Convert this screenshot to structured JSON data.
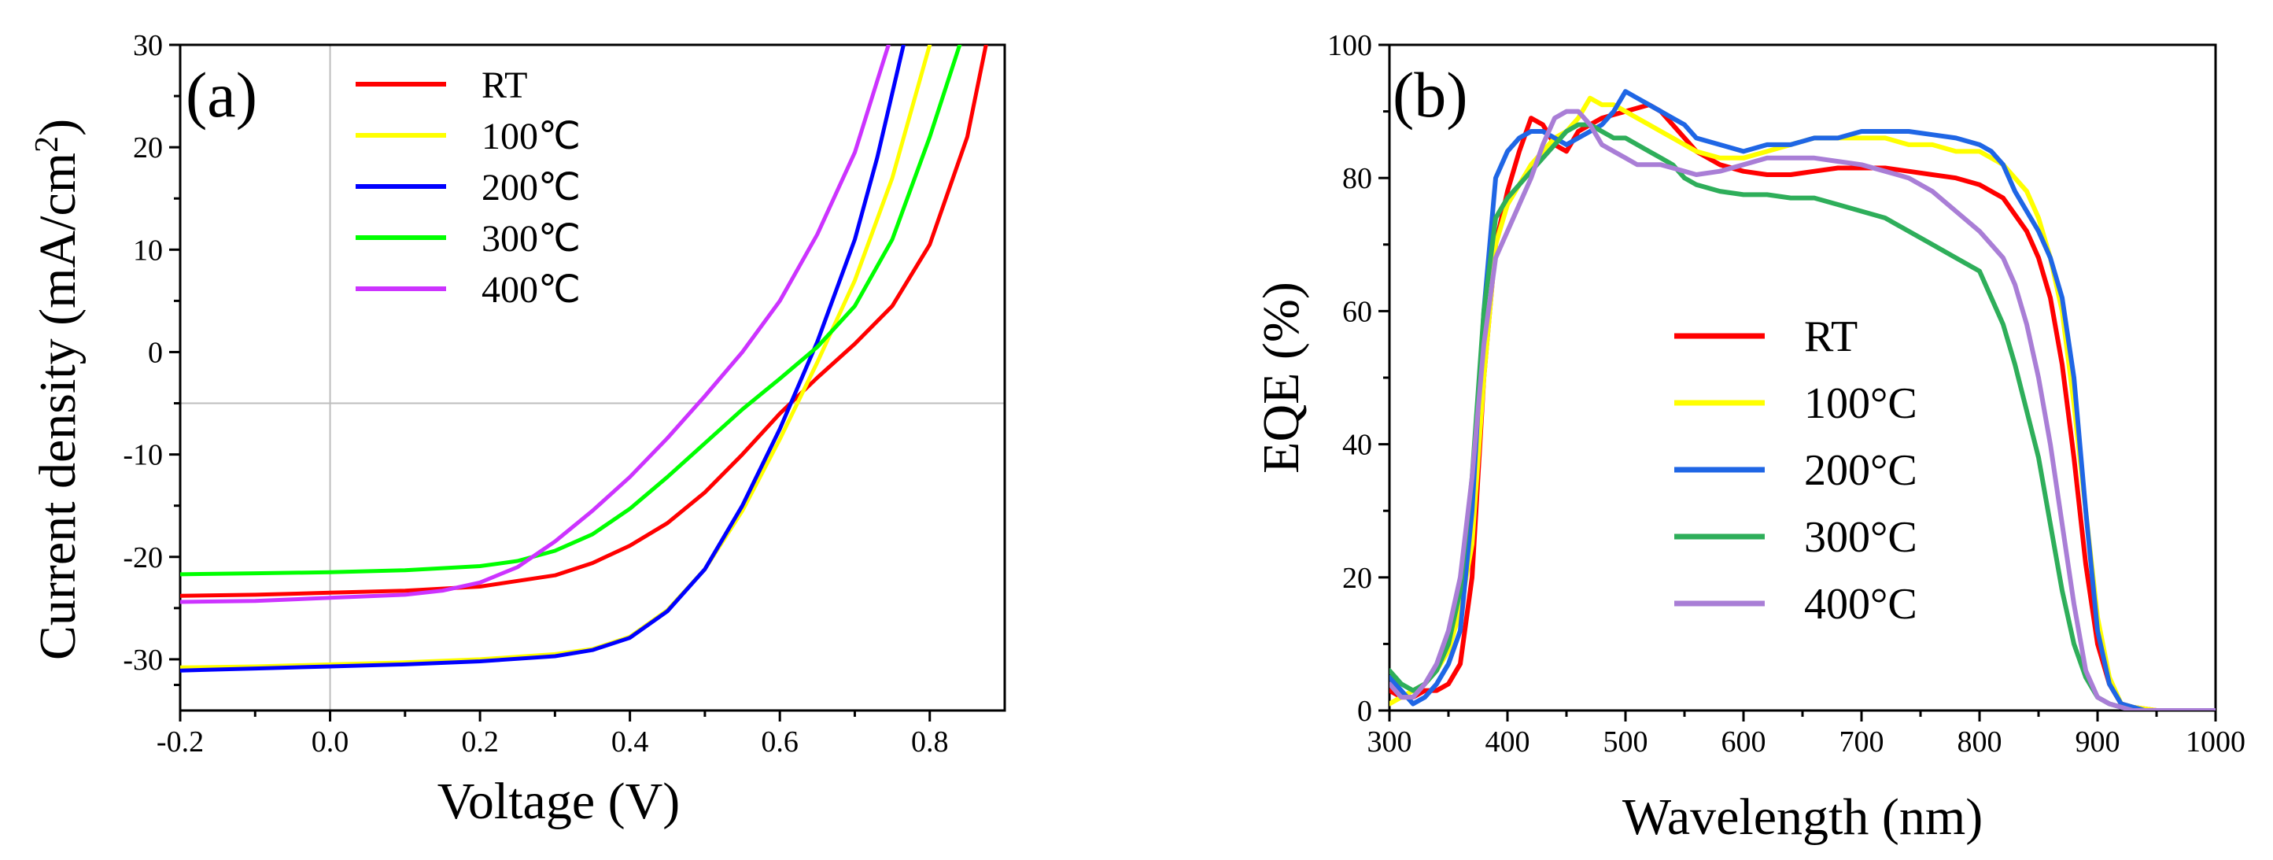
{
  "chart_data": [
    {
      "type": "line",
      "panel_label": "(a)",
      "xlabel": "Voltage (V)",
      "ylabel_main": "Current density (mA/cm",
      "ylabel_sup": "2",
      "ylabel_close": ")",
      "xlim": [
        -0.2,
        0.9
      ],
      "ylim": [
        -35,
        30
      ],
      "xticks": [
        -0.2,
        0.0,
        0.2,
        0.4,
        0.6,
        0.8
      ],
      "xtick_labels": [
        "-0.2",
        "0.0",
        "0.2",
        "0.4",
        "0.6",
        "0.8"
      ],
      "yticks": [
        -30,
        -20,
        -10,
        0,
        10,
        20,
        30
      ],
      "ytick_labels": [
        "-30",
        "-20",
        "-10",
        "0",
        "10",
        "20",
        "30"
      ],
      "reference_lines": {
        "x": 0,
        "y": -5
      },
      "legend_position": "top-left",
      "series": [
        {
          "name": "RT",
          "color": "#ff0000",
          "x": [
            -0.2,
            -0.1,
            0.0,
            0.1,
            0.2,
            0.3,
            0.35,
            0.4,
            0.45,
            0.5,
            0.55,
            0.6,
            0.65,
            0.7,
            0.75,
            0.8,
            0.85,
            0.875
          ],
          "y": [
            -23.8,
            -23.7,
            -23.5,
            -23.3,
            -22.9,
            -21.8,
            -20.6,
            -18.9,
            -16.7,
            -13.7,
            -10.0,
            -6.0,
            -2.5,
            0.8,
            4.5,
            10.5,
            21.0,
            30.0
          ]
        },
        {
          "name": "100℃",
          "color": "#ffff00",
          "x": [
            -0.2,
            -0.1,
            0.0,
            0.1,
            0.2,
            0.3,
            0.35,
            0.4,
            0.45,
            0.5,
            0.55,
            0.6,
            0.65,
            0.7,
            0.75,
            0.8
          ],
          "y": [
            -30.8,
            -30.7,
            -30.5,
            -30.3,
            -30.0,
            -29.5,
            -29.0,
            -27.8,
            -25.2,
            -21.2,
            -15.5,
            -8.5,
            -1.0,
            7.0,
            17.0,
            30.0
          ]
        },
        {
          "name": "200℃",
          "color": "#0000ff",
          "x": [
            -0.2,
            -0.1,
            0.0,
            0.1,
            0.2,
            0.3,
            0.35,
            0.4,
            0.45,
            0.5,
            0.55,
            0.6,
            0.65,
            0.7,
            0.73,
            0.765
          ],
          "y": [
            -31.1,
            -30.9,
            -30.7,
            -30.5,
            -30.2,
            -29.7,
            -29.1,
            -27.9,
            -25.3,
            -21.2,
            -15.0,
            -7.5,
            1.0,
            11.0,
            19.0,
            30.0
          ]
        },
        {
          "name": "300℃",
          "color": "#00ff00",
          "x": [
            -0.2,
            -0.1,
            0.0,
            0.1,
            0.2,
            0.25,
            0.3,
            0.35,
            0.4,
            0.45,
            0.5,
            0.55,
            0.6,
            0.65,
            0.7,
            0.75,
            0.8,
            0.84
          ],
          "y": [
            -21.7,
            -21.6,
            -21.5,
            -21.3,
            -20.9,
            -20.4,
            -19.4,
            -17.8,
            -15.3,
            -12.2,
            -8.9,
            -5.6,
            -2.6,
            0.5,
            4.5,
            11.0,
            21.0,
            30.0
          ]
        },
        {
          "name": "400℃",
          "color": "#cc33ff",
          "x": [
            -0.2,
            -0.1,
            0.0,
            0.1,
            0.15,
            0.2,
            0.25,
            0.3,
            0.35,
            0.4,
            0.45,
            0.5,
            0.55,
            0.6,
            0.65,
            0.7,
            0.745
          ],
          "y": [
            -24.4,
            -24.3,
            -24.0,
            -23.7,
            -23.3,
            -22.5,
            -21.0,
            -18.5,
            -15.5,
            -12.2,
            -8.4,
            -4.3,
            0.0,
            5.0,
            11.5,
            19.5,
            30.0
          ]
        }
      ]
    },
    {
      "type": "line",
      "panel_label": "(b)",
      "xlabel": "Wavelength (nm)",
      "ylabel": "EQE (%)",
      "xlim": [
        300,
        1000
      ],
      "ylim": [
        0,
        100
      ],
      "xticks": [
        300,
        400,
        500,
        600,
        700,
        800,
        900,
        1000
      ],
      "xtick_labels": [
        "300",
        "400",
        "500",
        "600",
        "700",
        "800",
        "900",
        "1000"
      ],
      "yticks": [
        0,
        20,
        40,
        60,
        80,
        100
      ],
      "ytick_labels": [
        "0",
        "20",
        "40",
        "60",
        "80",
        "100"
      ],
      "legend_position": "center",
      "series": [
        {
          "name": "RT",
          "color": "#ff0000",
          "x": [
            300,
            310,
            320,
            330,
            340,
            350,
            360,
            370,
            380,
            390,
            400,
            410,
            420,
            430,
            440,
            450,
            460,
            470,
            480,
            490,
            500,
            510,
            520,
            530,
            540,
            550,
            560,
            580,
            600,
            620,
            640,
            660,
            680,
            700,
            720,
            740,
            760,
            780,
            800,
            820,
            840,
            850,
            860,
            870,
            880,
            890,
            900,
            910,
            920,
            930,
            950,
            970,
            1000
          ],
          "y": [
            3,
            2,
            2,
            3,
            3,
            4,
            7,
            20,
            50,
            70,
            78,
            84,
            89,
            88,
            85,
            84,
            87,
            88,
            89,
            89.5,
            90,
            90.5,
            91,
            90,
            88,
            86,
            84,
            82,
            81,
            80.5,
            80.5,
            81,
            81.5,
            81.5,
            81.5,
            81,
            80.5,
            80,
            79,
            77,
            72,
            68,
            62,
            52,
            38,
            22,
            10,
            4,
            1,
            0.5,
            0,
            0,
            0
          ]
        },
        {
          "name": "100°C",
          "color": "#ffff00",
          "x": [
            300,
            310,
            320,
            330,
            340,
            350,
            360,
            370,
            380,
            390,
            400,
            410,
            420,
            430,
            440,
            450,
            460,
            470,
            480,
            490,
            500,
            510,
            520,
            530,
            540,
            550,
            560,
            580,
            600,
            620,
            640,
            660,
            680,
            700,
            720,
            740,
            760,
            780,
            800,
            820,
            840,
            850,
            860,
            870,
            880,
            890,
            900,
            910,
            920,
            930,
            950,
            1000
          ],
          "y": [
            1,
            2,
            3,
            4,
            6,
            9,
            15,
            25,
            50,
            70,
            76,
            79,
            82,
            84,
            86,
            87,
            89,
            92,
            91,
            91,
            90,
            89,
            88,
            87,
            86,
            85,
            84,
            83,
            83,
            84,
            85,
            86,
            86,
            86,
            86,
            85,
            85,
            84,
            84,
            82,
            78,
            74,
            68,
            60,
            46,
            30,
            14,
            5,
            1,
            0.5,
            0,
            0
          ]
        },
        {
          "name": "200°C",
          "color": "#1f66e5",
          "x": [
            300,
            310,
            320,
            330,
            340,
            350,
            360,
            370,
            380,
            390,
            400,
            410,
            420,
            430,
            440,
            450,
            460,
            470,
            480,
            490,
            500,
            510,
            520,
            530,
            540,
            550,
            560,
            580,
            600,
            620,
            640,
            660,
            680,
            700,
            720,
            740,
            760,
            780,
            800,
            810,
            820,
            830,
            840,
            850,
            860,
            870,
            880,
            890,
            900,
            910,
            920,
            930,
            940,
            960,
            1000
          ],
          "y": [
            5,
            3,
            1,
            2,
            4,
            7,
            12,
            30,
            60,
            80,
            84,
            86,
            87,
            87,
            86,
            85,
            86,
            87,
            88,
            90,
            93,
            92,
            91,
            90,
            89,
            88,
            86,
            85,
            84,
            85,
            85,
            86,
            86,
            87,
            87,
            87,
            86.5,
            86,
            85,
            84,
            82,
            78,
            75,
            72,
            68,
            62,
            50,
            30,
            12,
            4,
            1,
            0.5,
            0,
            0,
            0
          ]
        },
        {
          "name": "300°C",
          "color": "#2eae5a",
          "x": [
            300,
            310,
            320,
            330,
            340,
            350,
            360,
            370,
            380,
            390,
            400,
            410,
            420,
            430,
            440,
            450,
            460,
            470,
            480,
            490,
            500,
            510,
            520,
            530,
            540,
            550,
            560,
            580,
            600,
            620,
            640,
            660,
            680,
            700,
            720,
            740,
            760,
            780,
            800,
            810,
            820,
            830,
            840,
            850,
            860,
            870,
            880,
            890,
            900,
            910,
            920,
            930,
            1000
          ],
          "y": [
            6,
            4,
            3,
            4,
            6,
            10,
            18,
            35,
            60,
            74,
            77,
            79,
            81,
            83,
            85,
            87,
            88,
            88,
            87,
            86,
            86,
            85,
            84,
            83,
            82,
            80,
            79,
            78,
            77.5,
            77.5,
            77,
            77,
            76,
            75,
            74,
            72,
            70,
            68,
            66,
            62,
            58,
            52,
            45,
            38,
            28,
            18,
            10,
            5,
            2,
            1,
            0.5,
            0,
            0
          ]
        },
        {
          "name": "400°C",
          "color": "#a97ed6",
          "x": [
            300,
            310,
            320,
            330,
            340,
            350,
            360,
            370,
            380,
            390,
            400,
            410,
            420,
            430,
            440,
            450,
            460,
            470,
            480,
            490,
            500,
            510,
            520,
            530,
            540,
            550,
            560,
            580,
            600,
            620,
            640,
            660,
            680,
            700,
            720,
            740,
            760,
            780,
            800,
            810,
            820,
            830,
            840,
            850,
            860,
            870,
            880,
            890,
            900,
            910,
            920,
            930,
            1000
          ],
          "y": [
            4,
            2,
            2,
            4,
            7,
            12,
            20,
            35,
            55,
            68,
            72,
            76,
            80,
            85,
            89,
            90,
            90,
            88,
            85,
            84,
            83,
            82,
            82,
            82,
            81.5,
            81,
            80.5,
            81,
            82,
            83,
            83,
            83,
            82.5,
            82,
            81,
            80,
            78,
            75,
            72,
            70,
            68,
            64,
            58,
            50,
            40,
            28,
            16,
            6,
            2,
            1,
            0.5,
            0,
            0
          ]
        }
      ]
    }
  ]
}
